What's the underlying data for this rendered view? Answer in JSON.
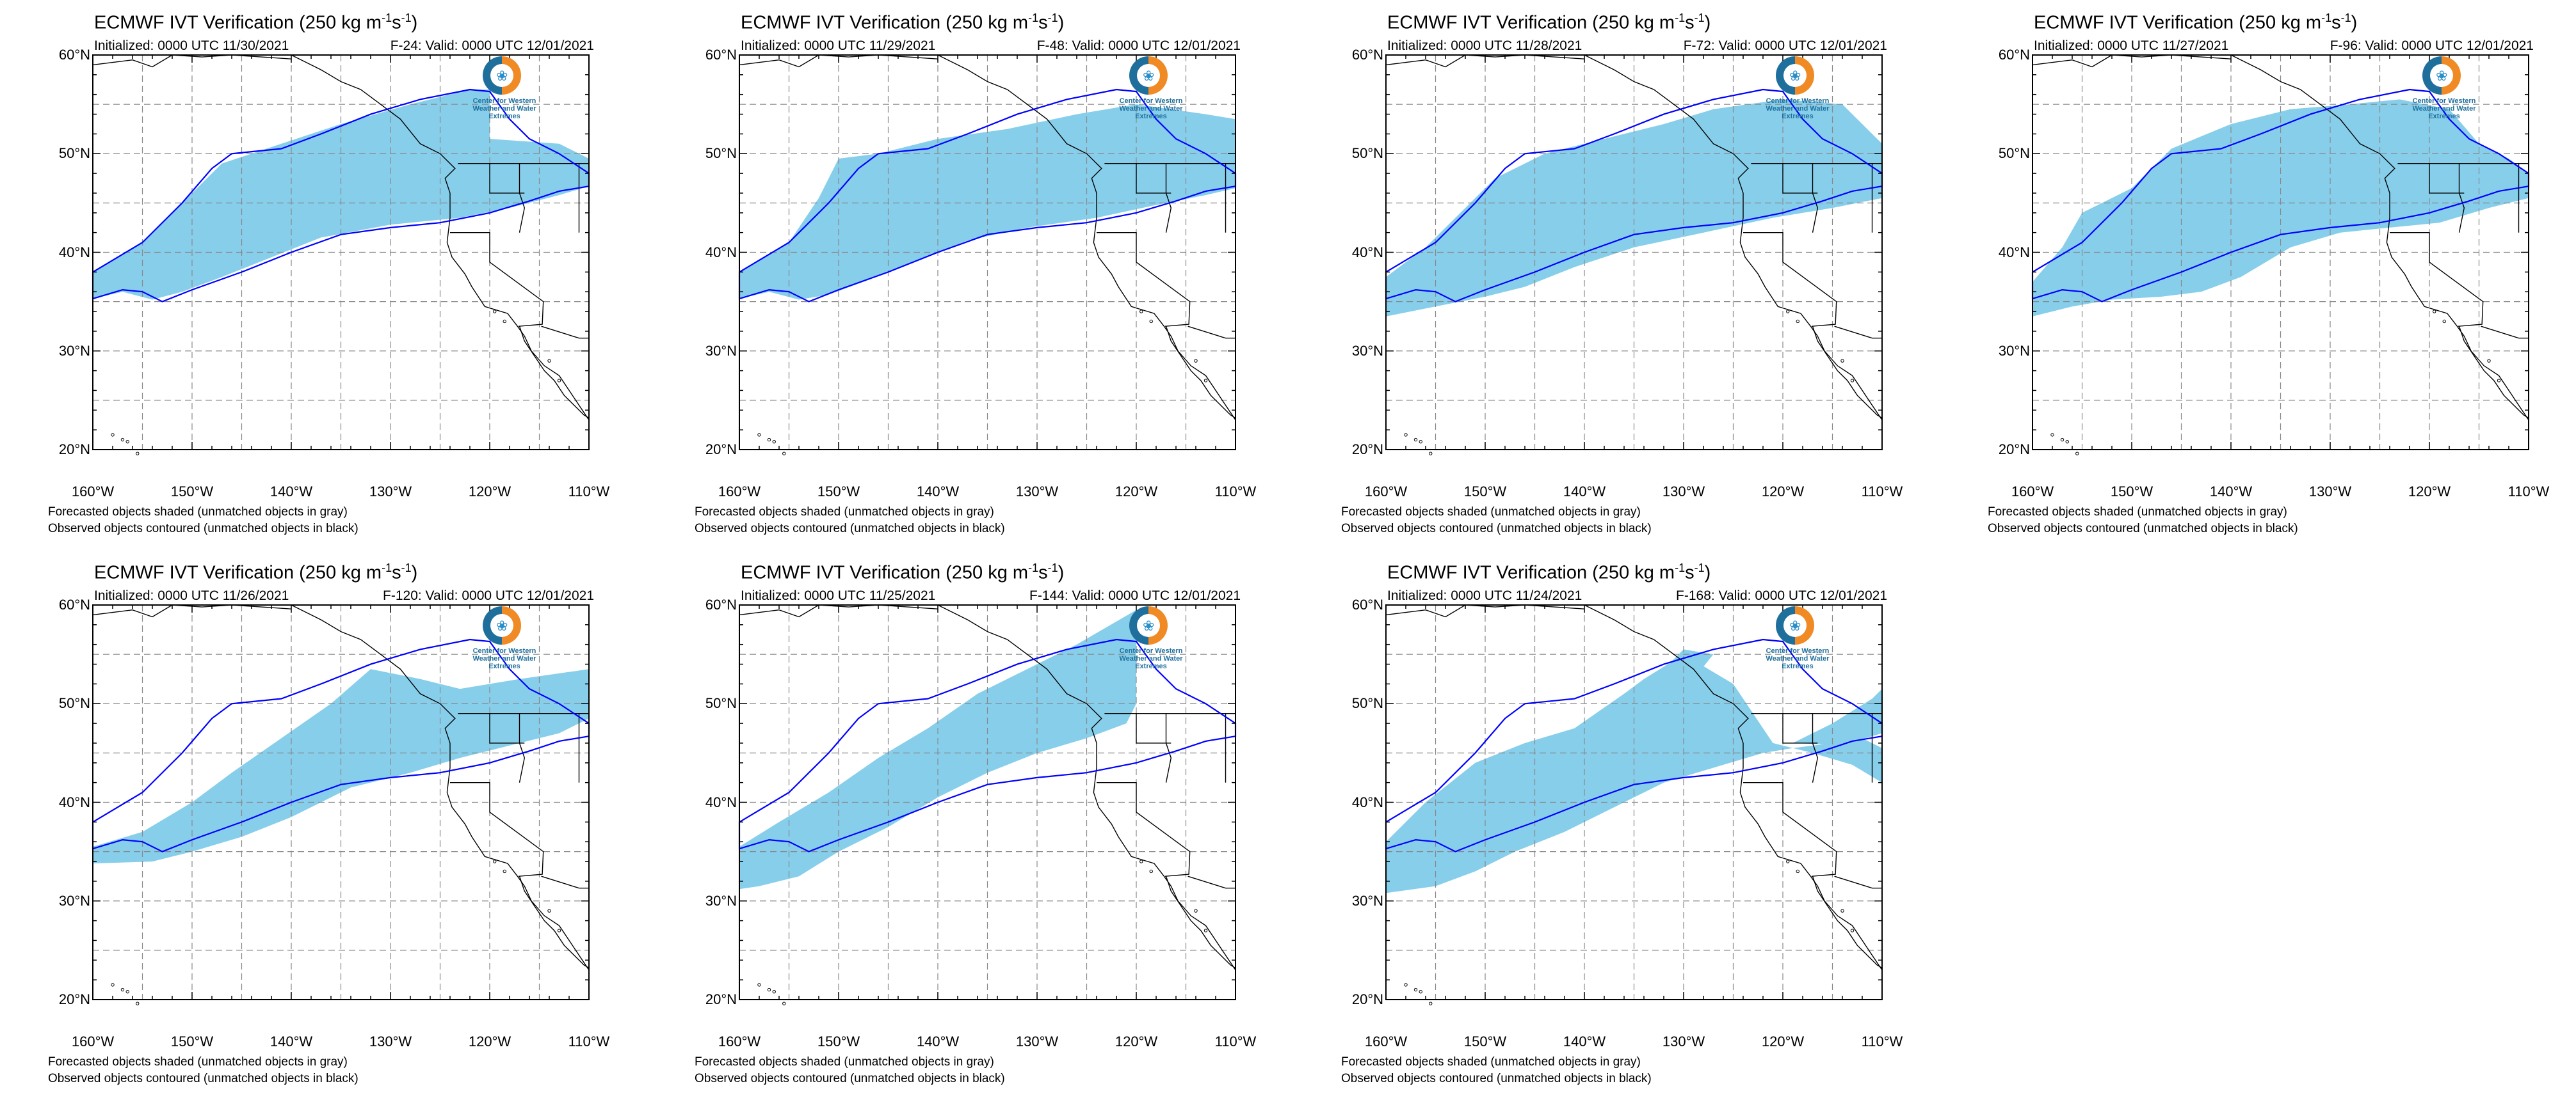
{
  "title": "ECMWF IVT Verification (250 kg m",
  "title_units_sup": "-1",
  "title_mid": "s",
  "title_end": ")",
  "latitude_labels": [
    "60°N",
    "50°N",
    "40°N",
    "30°N",
    "20°N"
  ],
  "longitude_labels": [
    "160°W",
    "150°W",
    "140°W",
    "130°W",
    "120°W",
    "110°W"
  ],
  "footer_line1": "Forecasted objects shaded (unmatched objects in gray)",
  "footer_line2": "Observed objects contoured (unmatched objects in black)",
  "logo_text": "Center for Western Weather and Water Extremes",
  "colors": {
    "forecast_fill": "#87ceeb",
    "observed_contour": "#0000ff",
    "coast": "#000000",
    "grid": "#888888"
  },
  "panels": [
    {
      "init": "Initialized: 0000 UTC 11/30/2021",
      "valid": "F-24: Valid: 0000 UTC 12/01/2021"
    },
    {
      "init": "Initialized: 0000 UTC 11/29/2021",
      "valid": "F-48: Valid: 0000 UTC 12/01/2021"
    },
    {
      "init": "Initialized: 0000 UTC 11/28/2021",
      "valid": "F-72: Valid: 0000 UTC 12/01/2021"
    },
    {
      "init": "Initialized: 0000 UTC 11/27/2021",
      "valid": "F-96: Valid: 0000 UTC 12/01/2021"
    },
    {
      "init": "Initialized: 0000 UTC 11/26/2021",
      "valid": "F-120: Valid: 0000 UTC 12/01/2021"
    },
    {
      "init": "Initialized: 0000 UTC 11/25/2021",
      "valid": "F-144: Valid: 0000 UTC 12/01/2021"
    },
    {
      "init": "Initialized: 0000 UTC 11/24/2021",
      "valid": "F-168: Valid: 0000 UTC 12/01/2021"
    }
  ]
}
